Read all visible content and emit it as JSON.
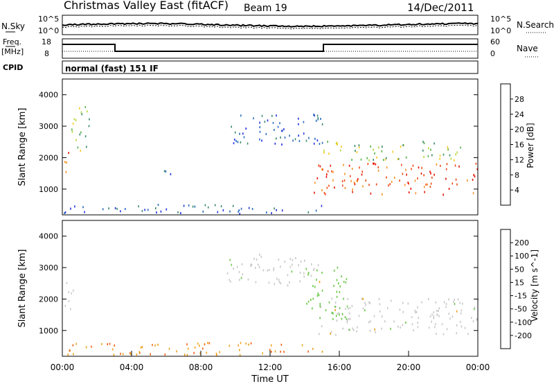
{
  "header": {
    "station": "Christmas Valley East (fitACF)",
    "beam": "Beam 19",
    "date": "14/Dec/2011"
  },
  "noise_panel": {
    "left_label": "N.Sky",
    "right_label": "N.Search",
    "y_ticks": [
      "10^5",
      "10^0"
    ]
  },
  "freq_panel": {
    "left_label_top": "Freq.",
    "left_label_bottom": "[MHz]",
    "left_ticks": [
      "18",
      "8"
    ],
    "right_ticks": [
      "60",
      "0"
    ],
    "right_label": "Nave",
    "cpid_label": "CPID",
    "cpid_value": "normal (fast) 151 IF"
  },
  "x_axis": {
    "label": "Time UT",
    "ticks": [
      "00:00",
      "04:00",
      "08:00",
      "12:00",
      "16:00",
      "20:00",
      "00:00"
    ]
  },
  "chart_data": [
    {
      "type": "heatmap",
      "name": "power",
      "x_range_hours": [
        0,
        24
      ],
      "ylabel": "Slant Range [km]",
      "yticks": [
        "1000",
        "2000",
        "3000",
        "4000"
      ],
      "ylim_km": [
        180,
        4500
      ],
      "colorbar": {
        "label": "Power [dB]",
        "ticks": [
          "4",
          "8",
          "12",
          "16",
          "20",
          "24",
          "28"
        ],
        "colors": [
          "#2233dd",
          "#2a6ec0",
          "#3a8a6a",
          "#55b04a",
          "#b6d838",
          "#f8c820",
          "#f89020",
          "#f04a14",
          "#e41400"
        ]
      },
      "features": [
        {
          "t": [
            0.0,
            0.35
          ],
          "r": [
            1500,
            2400
          ],
          "level": "high"
        },
        {
          "t": [
            0.4,
            1.6
          ],
          "r": [
            2200,
            3600
          ],
          "level": "mid"
        },
        {
          "t": [
            5.8,
            6.6
          ],
          "r": [
            1400,
            1700
          ],
          "level": "low"
        },
        {
          "t": [
            0,
            15.0
          ],
          "r": [
            200,
            500
          ],
          "level": "low"
        },
        {
          "t": [
            9.5,
            15.0
          ],
          "r": [
            2400,
            3400
          ],
          "level": "low"
        },
        {
          "t": [
            14.5,
            24.0
          ],
          "r": [
            800,
            1800
          ],
          "level": "high"
        },
        {
          "t": [
            15.0,
            23.5
          ],
          "r": [
            1900,
            2500
          ],
          "level": "mid"
        }
      ]
    },
    {
      "type": "heatmap",
      "name": "velocity",
      "x_range_hours": [
        0,
        24
      ],
      "ylabel": "Slant Range [km]",
      "yticks": [
        "1000",
        "2000",
        "3000",
        "4000"
      ],
      "ylim_km": [
        180,
        4500
      ],
      "colorbar": {
        "label": "Velocity [m s^-1]",
        "ticks": [
          "200",
          "100",
          "50",
          "15",
          "-15",
          "-50",
          "-100",
          "-200"
        ],
        "colors": [
          "#1e2ab4",
          "#2a70b8",
          "#3c9c6c",
          "#6cc84a",
          "#c8c8c8",
          "#f0a018",
          "#f06010",
          "#e02010",
          "#d40000"
        ]
      },
      "features": [
        {
          "t": [
            0.0,
            0.6
          ],
          "r": [
            1500,
            2500
          ],
          "level": "ground"
        },
        {
          "t": [
            0,
            15.0
          ],
          "r": [
            200,
            600
          ],
          "level": "negative"
        },
        {
          "t": [
            9.5,
            15.0
          ],
          "r": [
            2400,
            3400
          ],
          "level": "ground"
        },
        {
          "t": [
            14.5,
            24.0
          ],
          "r": [
            800,
            2000
          ],
          "level": "ground"
        },
        {
          "t": [
            14.0,
            16.5
          ],
          "r": [
            1300,
            3000
          ],
          "level": "positive"
        }
      ]
    }
  ]
}
